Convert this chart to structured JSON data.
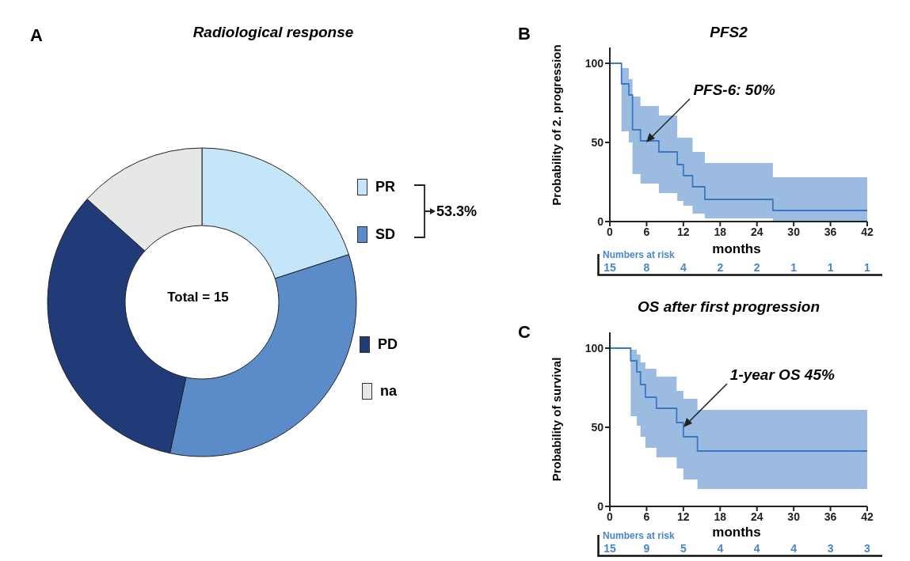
{
  "chart_data": [
    {
      "type": "donut",
      "title": "Radiological response",
      "categories": [
        "PR",
        "SD",
        "PD",
        "na"
      ],
      "values": [
        20,
        33.33,
        33.33,
        13.34
      ],
      "colors": [
        "#c5e5f8",
        "#5b8cc9",
        "#213a78",
        "#e6e7e7"
      ],
      "legend": "right",
      "annotations": [
        "A",
        "Total = 15",
        "53.3%"
      ]
    },
    {
      "type": "step",
      "title": "PFS2",
      "xlabel": "months",
      "ylabel": "Probability of 2. progression",
      "xlim": [
        0,
        42
      ],
      "xticks": [
        0,
        6,
        12,
        18,
        24,
        30,
        36,
        42
      ],
      "ylim": [
        0,
        110
      ],
      "yticks": [
        0,
        50,
        100
      ],
      "x": [
        0,
        1.9,
        3.1,
        3.7,
        5,
        8,
        11,
        12,
        13.5,
        15.5,
        26.6,
        42
      ],
      "series": [
        {
          "color": "#3a78c4",
          "values": [
            100,
            87,
            80,
            58,
            51,
            44,
            36,
            29,
            22,
            14,
            7,
            7
          ],
          "lower": [
            null,
            57,
            50,
            30,
            24,
            18,
            13,
            10,
            5,
            2,
            0,
            0
          ],
          "upper": [
            null,
            97,
            90,
            79,
            73,
            67,
            53,
            53,
            44,
            37,
            28,
            28
          ]
        }
      ],
      "annotations": [
        {
          "text": "PFS-6: 50%",
          "x": 6,
          "y": 50
        },
        "B",
        "Numbers at risk",
        "15",
        "8",
        "4",
        "2",
        "2",
        "1",
        "1",
        "1"
      ]
    },
    {
      "type": "step",
      "title": "OS after first progression",
      "xlabel": "months",
      "ylabel": "Probability of survival",
      "xlim": [
        0,
        42
      ],
      "xticks": [
        0,
        6,
        12,
        18,
        24,
        30,
        36,
        42
      ],
      "ylim": [
        0,
        110
      ],
      "yticks": [
        0,
        50,
        100
      ],
      "x": [
        0,
        3.4,
        4.4,
        5,
        5.8,
        7.6,
        10.9,
        12,
        14.3,
        42
      ],
      "series": [
        {
          "color": "#3a78c4",
          "values": [
            100,
            92,
            85,
            77,
            69,
            62,
            53,
            44,
            35,
            35
          ],
          "lower": [
            null,
            57,
            51,
            44,
            37,
            31,
            24,
            17,
            11,
            11
          ],
          "upper": [
            null,
            99,
            96,
            91,
            87,
            82,
            73,
            68,
            61,
            61
          ]
        }
      ],
      "annotations": [
        {
          "text": "1-year OS 45%",
          "x": 12,
          "y": 50
        },
        "C",
        "Numbers at risk",
        "15",
        "9",
        "5",
        "4",
        "4",
        "4",
        "3",
        "3"
      ]
    }
  ]
}
